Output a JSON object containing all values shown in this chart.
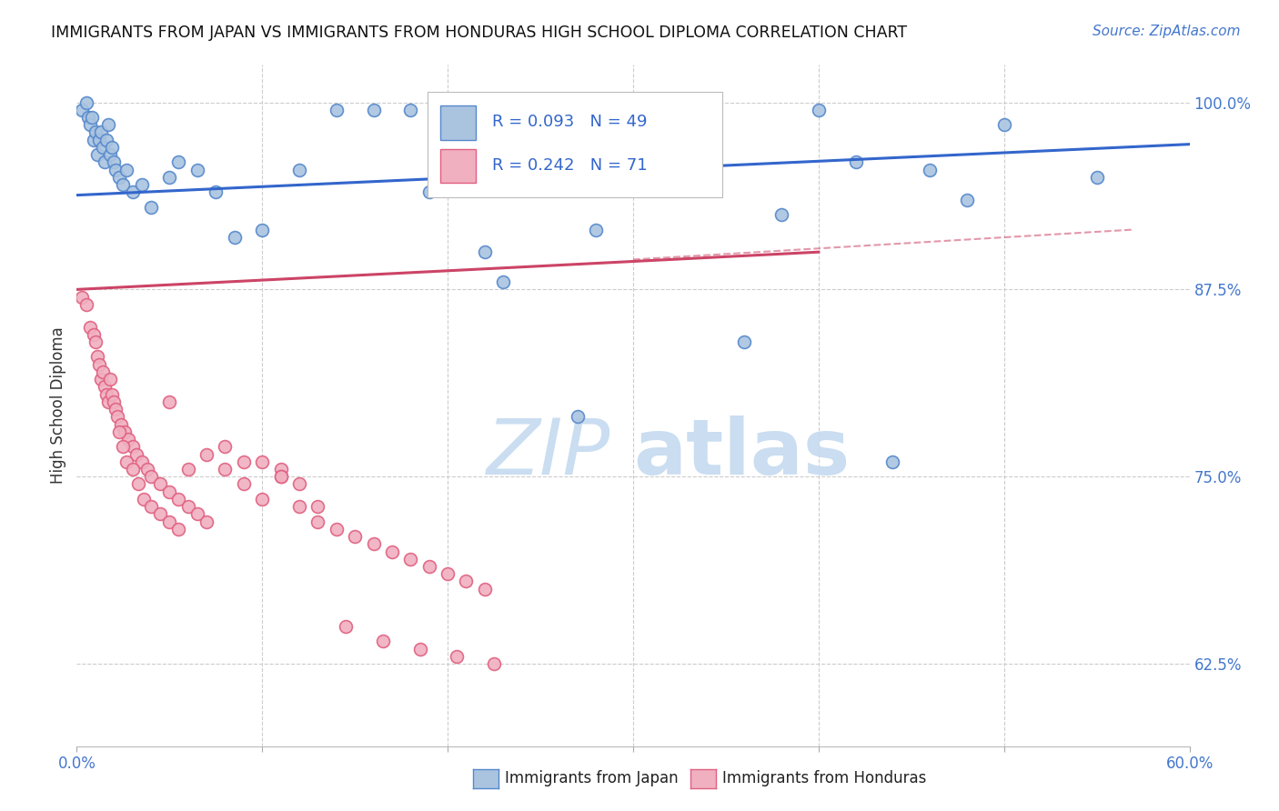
{
  "title": "IMMIGRANTS FROM JAPAN VS IMMIGRANTS FROM HONDURAS HIGH SCHOOL DIPLOMA CORRELATION CHART",
  "source": "Source: ZipAtlas.com",
  "ylabel": "High School Diploma",
  "ytick_vals": [
    62.5,
    75.0,
    87.5,
    100.0
  ],
  "ytick_labels": [
    "62.5%",
    "75.0%",
    "87.5%",
    "100.0%"
  ],
  "xmin": 0.0,
  "xmax": 60.0,
  "ymin": 57.0,
  "ymax": 102.5,
  "japan_color": "#aac4e0",
  "japan_edge_color": "#5588cc",
  "honduras_color": "#f0b0c0",
  "honduras_edge_color": "#e06080",
  "trend_japan_color": "#3366cc",
  "trend_honduras_color": "#cc4466",
  "R_japan": 0.093,
  "N_japan": 49,
  "R_honduras": 0.242,
  "N_honduras": 71,
  "legend_label_japan": "Immigrants from Japan",
  "legend_label_honduras": "Immigrants from Honduras",
  "japan_trend_x0": 0.0,
  "japan_trend_y0": 93.8,
  "japan_trend_x1": 60.0,
  "japan_trend_y1": 97.2,
  "honduras_trend_x0": 0.0,
  "honduras_trend_y0": 87.5,
  "honduras_trend_x1": 40.0,
  "honduras_trend_y1": 90.0,
  "honduras_dash_x0": 30.0,
  "honduras_dash_y0": 89.5,
  "honduras_dash_x1": 57.0,
  "honduras_dash_y1": 91.5,
  "japan_x": [
    0.3,
    0.5,
    0.6,
    0.7,
    0.8,
    0.9,
    1.0,
    1.1,
    1.2,
    1.3,
    1.4,
    1.5,
    1.6,
    1.7,
    1.8,
    1.9,
    2.0,
    2.1,
    2.3,
    2.5,
    2.7,
    3.0,
    3.5,
    4.0,
    5.0,
    5.5,
    6.5,
    7.5,
    8.5,
    10.0,
    12.0,
    14.0,
    16.0,
    18.0,
    22.0,
    28.0,
    38.0,
    42.0,
    46.0,
    50.0,
    23.0,
    32.0,
    40.0,
    44.0,
    48.0,
    55.0,
    36.0,
    27.0,
    19.0
  ],
  "japan_y": [
    99.5,
    100.0,
    99.0,
    98.5,
    99.0,
    97.5,
    98.0,
    96.5,
    97.5,
    98.0,
    97.0,
    96.0,
    97.5,
    98.5,
    96.5,
    97.0,
    96.0,
    95.5,
    95.0,
    94.5,
    95.5,
    94.0,
    94.5,
    93.0,
    95.0,
    96.0,
    95.5,
    94.0,
    91.0,
    91.5,
    95.5,
    99.5,
    99.5,
    99.5,
    90.0,
    91.5,
    92.5,
    96.0,
    95.5,
    98.5,
    88.0,
    99.5,
    99.5,
    76.0,
    93.5,
    95.0,
    84.0,
    79.0,
    94.0
  ],
  "honduras_x": [
    0.3,
    0.5,
    0.7,
    0.9,
    1.0,
    1.1,
    1.2,
    1.3,
    1.4,
    1.5,
    1.6,
    1.7,
    1.8,
    1.9,
    2.0,
    2.1,
    2.2,
    2.4,
    2.6,
    2.8,
    3.0,
    3.2,
    3.5,
    3.8,
    4.0,
    4.5,
    5.0,
    5.5,
    6.0,
    6.5,
    7.0,
    8.0,
    9.0,
    10.0,
    11.0,
    12.0,
    13.0,
    14.0,
    15.0,
    16.0,
    17.0,
    18.0,
    19.0,
    20.0,
    21.0,
    22.0,
    2.3,
    2.5,
    2.7,
    3.0,
    3.3,
    3.6,
    4.0,
    4.5,
    5.0,
    5.5,
    6.0,
    7.0,
    8.0,
    9.0,
    10.0,
    11.0,
    12.0,
    13.0,
    14.5,
    16.5,
    18.5,
    20.5,
    22.5,
    11.0,
    5.0
  ],
  "honduras_y": [
    87.0,
    86.5,
    85.0,
    84.5,
    84.0,
    83.0,
    82.5,
    81.5,
    82.0,
    81.0,
    80.5,
    80.0,
    81.5,
    80.5,
    80.0,
    79.5,
    79.0,
    78.5,
    78.0,
    77.5,
    77.0,
    76.5,
    76.0,
    75.5,
    75.0,
    74.5,
    74.0,
    73.5,
    73.0,
    72.5,
    72.0,
    75.5,
    74.5,
    76.0,
    75.5,
    73.0,
    72.0,
    71.5,
    71.0,
    70.5,
    70.0,
    69.5,
    69.0,
    68.5,
    68.0,
    67.5,
    78.0,
    77.0,
    76.0,
    75.5,
    74.5,
    73.5,
    73.0,
    72.5,
    72.0,
    71.5,
    75.5,
    76.5,
    77.0,
    76.0,
    73.5,
    75.0,
    74.5,
    73.0,
    65.0,
    64.0,
    63.5,
    63.0,
    62.5,
    75.0,
    80.0
  ],
  "watermark_zip": "ZIP",
  "watermark_atlas": "atlas",
  "background_color": "#ffffff",
  "grid_color": "#cccccc",
  "marker_size": 100
}
